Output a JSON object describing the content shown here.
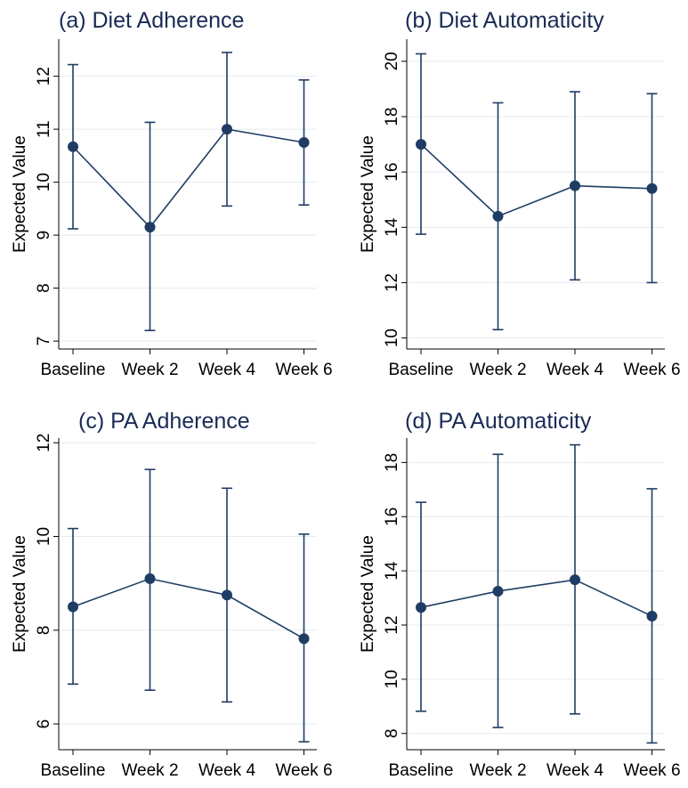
{
  "colors": {
    "series": "#1f3d64",
    "grid": "#e4ebf0",
    "axis": "#000000",
    "text": "#000000",
    "title": "#1a2b56"
  },
  "chart_data": [
    {
      "type": "line",
      "title": "(a) Diet Adherence",
      "ylabel": "Expected Value",
      "categories": [
        "Baseline",
        "Week 2",
        "Week 4",
        "Week 6"
      ],
      "ylim": [
        6.85,
        12.7
      ],
      "yticks": [
        7,
        8,
        9,
        10,
        11,
        12
      ],
      "grid": true,
      "error_bars": true,
      "series": [
        {
          "values": [
            10.67,
            9.15,
            11.0,
            10.75
          ],
          "lower": [
            9.12,
            7.2,
            9.55,
            9.57
          ],
          "upper": [
            12.22,
            11.13,
            12.45,
            11.93
          ]
        }
      ]
    },
    {
      "type": "line",
      "title": "(b) Diet Automaticity",
      "ylabel": "Expected Value",
      "categories": [
        "Baseline",
        "Week 2",
        "Week 4",
        "Week 6"
      ],
      "ylim": [
        9.6,
        20.8
      ],
      "yticks": [
        10,
        12,
        14,
        16,
        18,
        20
      ],
      "grid": true,
      "error_bars": true,
      "series": [
        {
          "values": [
            17.0,
            14.4,
            15.5,
            15.4
          ],
          "lower": [
            13.75,
            10.3,
            12.1,
            12.0
          ],
          "upper": [
            20.27,
            18.5,
            18.9,
            18.83
          ]
        }
      ]
    },
    {
      "type": "line",
      "title": "(c) PA Adherence",
      "ylabel": "Expected Value",
      "categories": [
        "Baseline",
        "Week 2",
        "Week 4",
        "Week 6"
      ],
      "ylim": [
        5.45,
        12.1
      ],
      "yticks": [
        6,
        8,
        10,
        12
      ],
      "grid": true,
      "error_bars": true,
      "series": [
        {
          "values": [
            8.5,
            9.1,
            8.75,
            7.82
          ],
          "lower": [
            6.85,
            6.72,
            6.47,
            5.62
          ],
          "upper": [
            10.17,
            11.43,
            11.03,
            10.05
          ]
        }
      ]
    },
    {
      "type": "line",
      "title": "(d) PA Automaticity",
      "ylabel": "Expected Value",
      "categories": [
        "Baseline",
        "Week 2",
        "Week 4",
        "Week 6"
      ],
      "ylim": [
        7.4,
        18.9
      ],
      "yticks": [
        8,
        10,
        12,
        14,
        16,
        18
      ],
      "grid": true,
      "error_bars": true,
      "series": [
        {
          "values": [
            12.65,
            13.25,
            13.67,
            12.33
          ],
          "lower": [
            8.82,
            8.22,
            8.72,
            7.65
          ],
          "upper": [
            16.53,
            18.3,
            18.65,
            17.03
          ]
        }
      ]
    }
  ]
}
